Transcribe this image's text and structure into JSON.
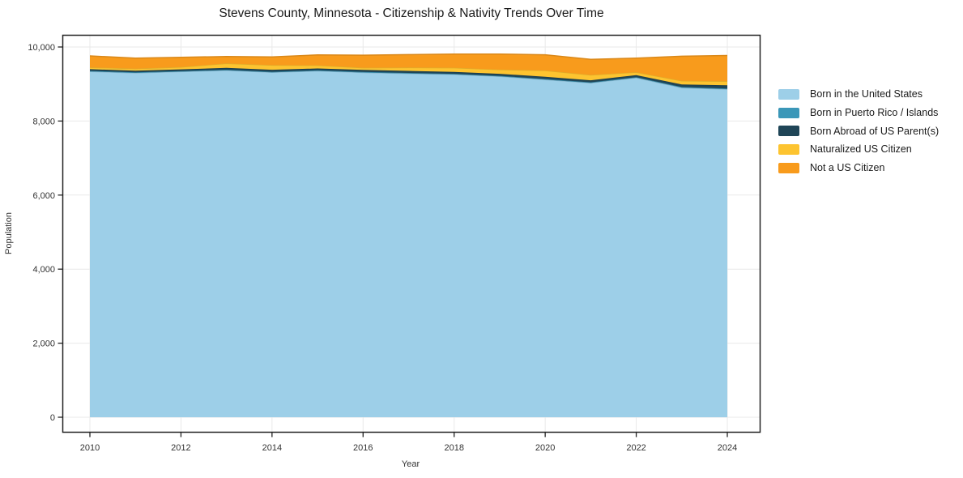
{
  "title": "Stevens County, Minnesota - Citizenship & Nativity Trends Over Time",
  "chart_data": {
    "type": "area",
    "stacked": true,
    "title": "Stevens County, Minnesota - Citizenship & Nativity Trends Over Time",
    "xlabel": "Year",
    "ylabel": "Population",
    "x": [
      2010,
      2011,
      2012,
      2013,
      2014,
      2015,
      2016,
      2017,
      2018,
      2019,
      2020,
      2021,
      2022,
      2023,
      2024
    ],
    "series": [
      {
        "name": "Born in the United States",
        "color": "#9dcfe8",
        "values": [
          9340,
          9300,
          9335,
          9370,
          9315,
          9355,
          9310,
          9285,
          9260,
          9205,
          9120,
          9030,
          9170,
          8900,
          8860
        ]
      },
      {
        "name": "Born in Puerto Rico / Islands",
        "color": "#3b97b8",
        "values": [
          15,
          15,
          15,
          15,
          15,
          15,
          15,
          15,
          15,
          15,
          15,
          15,
          15,
          20,
          20
        ]
      },
      {
        "name": "Born Abroad of US Parent(s)",
        "color": "#1f4557",
        "values": [
          45,
          45,
          45,
          50,
          55,
          50,
          55,
          55,
          50,
          55,
          60,
          55,
          55,
          70,
          85
        ]
      },
      {
        "name": "Naturalized US Citizen",
        "color": "#fdc430",
        "values": [
          50,
          55,
          65,
          120,
          125,
          85,
          60,
          90,
          115,
          115,
          170,
          145,
          80,
          95,
          110
        ]
      },
      {
        "name": "Not a US Citizen",
        "color": "#f89b1c",
        "values": [
          310,
          285,
          260,
          190,
          220,
          280,
          340,
          350,
          370,
          420,
          425,
          420,
          380,
          665,
          695
        ]
      }
    ],
    "ylim": [
      0,
      10000
    ],
    "yticks": [
      0,
      2000,
      4000,
      6000,
      8000,
      10000
    ],
    "ytick_labels": [
      "0",
      "2,000",
      "4,000",
      "6,000",
      "8,000",
      "10,000"
    ],
    "xticks": [
      2010,
      2012,
      2014,
      2016,
      2018,
      2020,
      2022,
      2024
    ],
    "grid": true,
    "legend_position": "right",
    "colors": {
      "plot_border": "#222222",
      "gridline": "#e9e9e9",
      "tick_text": "#333333",
      "background": "#ffffff"
    }
  }
}
